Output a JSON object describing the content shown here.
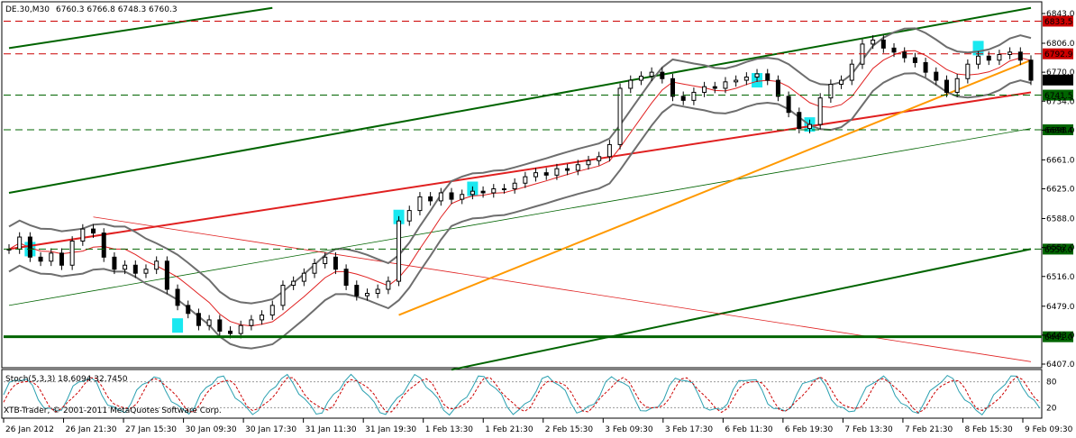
{
  "header": {
    "symbol": "DE.30,M30",
    "ohlc": "6760.3 6766.8 6748.3 6760.3"
  },
  "indicator": {
    "label": "Stoch(5,3,3) 18.6094 32.7450"
  },
  "footer": {
    "copyright": "XTB-Trader, © 2001-2011 MetaQuotes Software Corp."
  },
  "colors": {
    "candle": "#000000",
    "bollinger": "#6e6e6e",
    "ma": "#e02020",
    "channel": "#006400",
    "trend_red": "#e02020",
    "trend_orange": "#ff9900",
    "hline_red": "#cc0000",
    "hline_green": "#006400",
    "highlight": "#00e5ee",
    "stoch_main": "#2aa0b0",
    "stoch_signal": "#cc0000"
  },
  "chart_data": {
    "type": "candlestick",
    "ylim": [
      6407.0,
      6843.0
    ],
    "y_ticks": [
      "6843.0",
      "6806.0",
      "6770.0",
      "6734.0",
      "6698.0",
      "6661.0",
      "6625.0",
      "6588.0",
      "6552.0",
      "6516.0",
      "6479.0",
      "6443.0",
      "6407.0"
    ],
    "x_ticks": [
      "26 Jan 2012",
      "26 Jan 21:30",
      "27 Jan 15:30",
      "30 Jan 09:30",
      "30 Jan 17:30",
      "31 Jan 11:30",
      "31 Jan 19:30",
      "1 Feb 13:30",
      "1 Feb 21:30",
      "2 Feb 15:30",
      "3 Feb 09:30",
      "3 Feb 17:30",
      "6 Feb 11:30",
      "6 Feb 19:30",
      "7 Feb 13:30",
      "7 Feb 21:30",
      "8 Feb 15:30",
      "9 Feb 09:30"
    ],
    "close_series": [
      6550,
      6565,
      6540,
      6535,
      6545,
      6530,
      6560,
      6575,
      6570,
      6540,
      6525,
      6530,
      6520,
      6525,
      6535,
      6500,
      6480,
      6470,
      6455,
      6462,
      6448,
      6445,
      6455,
      6462,
      6468,
      6480,
      6505,
      6510,
      6520,
      6532,
      6540,
      6525,
      6505,
      6492,
      6495,
      6500,
      6510,
      6585,
      6598,
      6615,
      6610,
      6620,
      6612,
      6618,
      6622,
      6620,
      6625,
      6625,
      6632,
      6640,
      6645,
      6642,
      6650,
      6648,
      6655,
      6660,
      6665,
      6680,
      6750,
      6760,
      6765,
      6770,
      6762,
      6740,
      6735,
      6745,
      6752,
      6750,
      6758,
      6760,
      6764,
      6768,
      6760,
      6740,
      6720,
      6700,
      6705,
      6738,
      6755,
      6760,
      6780,
      6805,
      6810,
      6800,
      6795,
      6788,
      6782,
      6770,
      6760,
      6745,
      6762,
      6780,
      6790,
      6785,
      6792,
      6795,
      6785,
      6760
    ],
    "h_levels": [
      {
        "label": "6833.5",
        "value": 6833.5,
        "kind": "red"
      },
      {
        "label": "6792.9",
        "value": 6792.9,
        "kind": "red"
      },
      {
        "label": "6741.5",
        "value": 6741.5,
        "kind": "green"
      },
      {
        "label": "6698.4",
        "value": 6698.4,
        "kind": "green"
      },
      {
        "label": "6550.0",
        "value": 6550.0,
        "kind": "green"
      },
      {
        "label": "6441.0",
        "value": 6441.0,
        "kind": "green_solid"
      }
    ],
    "current_price": {
      "label": "6760.3",
      "value": 6760.3
    },
    "stoch_levels": [
      "80",
      "20"
    ]
  }
}
